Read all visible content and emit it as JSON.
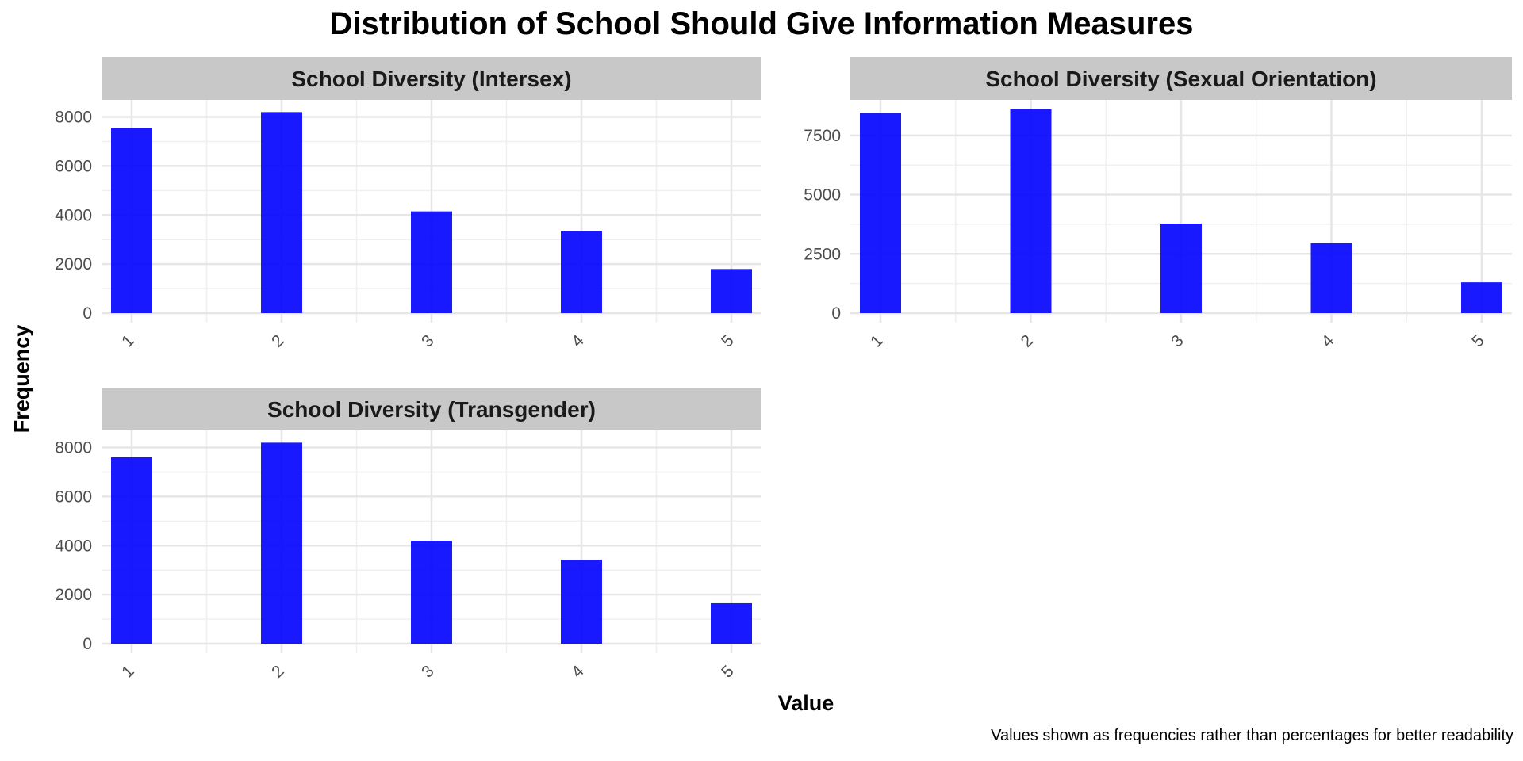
{
  "chart_data": {
    "type": "bar",
    "title": "Distribution of School Should Give Information Measures",
    "xlabel": "Value",
    "ylabel": "Frequency",
    "caption": "Values shown as frequencies rather than percentages for better readability",
    "bar_color": "#0000ff",
    "strip_color": "#c8c8c8",
    "grid": true,
    "x_ticks": [
      "1",
      "2",
      "3",
      "4",
      "5"
    ],
    "panels": [
      {
        "name": "School Diversity (Intersex)",
        "ylim": [
          0,
          8600
        ],
        "y_ticks": [
          0,
          2000,
          4000,
          6000,
          8000
        ],
        "x": [
          1,
          2,
          3,
          4,
          5
        ],
        "values": [
          7550,
          8200,
          4150,
          3350,
          1800
        ]
      },
      {
        "name": "School Diversity (Sexual Orientation)",
        "ylim": [
          0,
          8900
        ],
        "y_ticks": [
          0,
          2500,
          5000,
          7500
        ],
        "x": [
          1,
          2,
          3,
          4,
          5
        ],
        "values": [
          8450,
          8600,
          3780,
          2950,
          1300
        ]
      },
      {
        "name": "School Diversity (Transgender)",
        "ylim": [
          0,
          8600
        ],
        "y_ticks": [
          0,
          2000,
          4000,
          6000,
          8000
        ],
        "x": [
          1,
          2,
          3,
          4,
          5
        ],
        "values": [
          7600,
          8200,
          4200,
          3420,
          1650
        ]
      }
    ]
  }
}
